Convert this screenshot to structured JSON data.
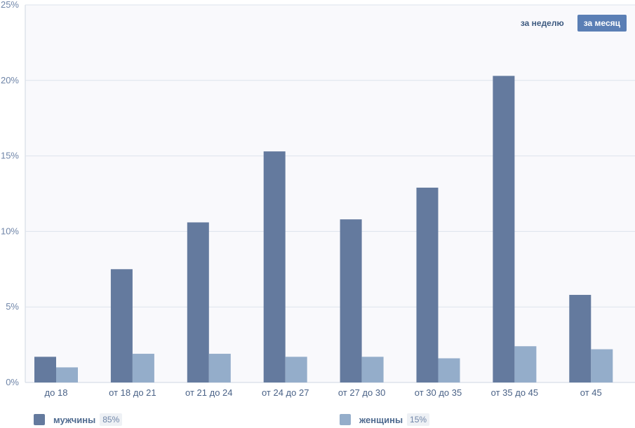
{
  "chart_data": {
    "type": "bar",
    "categories": [
      "до 18",
      "от 18 до 21",
      "от 21 до 24",
      "от 24 до 27",
      "от 27 до 30",
      "от 30 до 35",
      "от 35 до 45",
      "от 45"
    ],
    "series": [
      {
        "name": "мужчины",
        "values": [
          1.7,
          7.5,
          10.6,
          15.3,
          10.8,
          12.9,
          20.3,
          5.8
        ],
        "color": "#647a9e"
      },
      {
        "name": "женщины",
        "values": [
          1.0,
          1.9,
          1.9,
          1.7,
          1.7,
          1.6,
          2.4,
          2.2
        ],
        "color": "#94adca"
      }
    ],
    "ylim": [
      0,
      25
    ],
    "yticks": [
      0,
      5,
      10,
      15,
      20,
      25
    ],
    "ytick_labels": [
      "0%",
      "5%",
      "10%",
      "15%",
      "20%",
      "25%"
    ],
    "grid": true,
    "legend": "bottom",
    "plot_background": "#f9f9fc",
    "grid_color": "#dde3ec"
  },
  "period_switch": {
    "week_label": "за неделю",
    "month_label": "за месяц",
    "selected": "month"
  },
  "legend": {
    "men": {
      "label": "мужчины",
      "percent": "85%",
      "color": "#647a9e"
    },
    "women": {
      "label": "женщины",
      "percent": "15%",
      "color": "#94adca"
    }
  }
}
